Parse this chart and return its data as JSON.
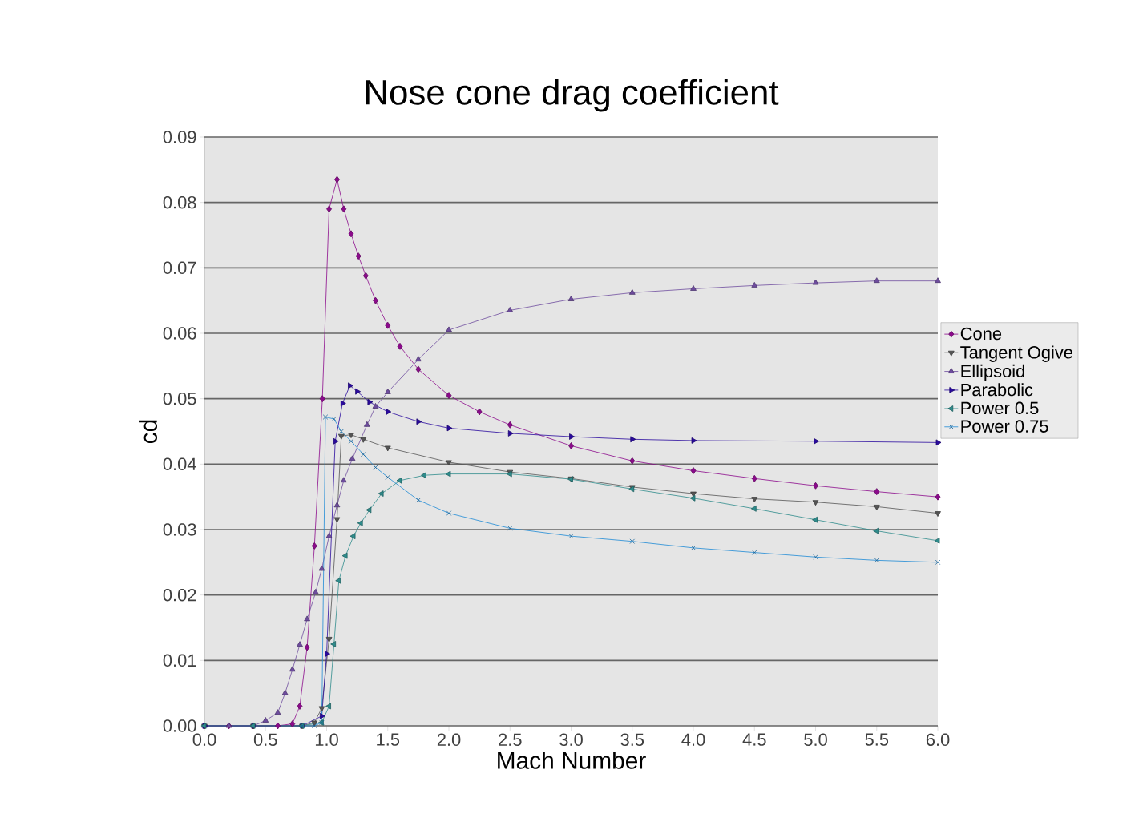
{
  "chart_data": {
    "type": "line",
    "title": "Nose cone drag coefficient",
    "xlabel": "Mach Number",
    "ylabel": "cd",
    "xlim": [
      0,
      6
    ],
    "ylim": [
      0,
      0.09
    ],
    "xticks": [
      {
        "value": 0,
        "label": "0.0"
      },
      {
        "value": 0.5,
        "label": "0.5"
      },
      {
        "value": 1,
        "label": "1.0"
      },
      {
        "value": 1.5,
        "label": "1.5"
      },
      {
        "value": 2,
        "label": "2.0"
      },
      {
        "value": 2.5,
        "label": "2.5"
      },
      {
        "value": 3,
        "label": "3.0"
      },
      {
        "value": 3.5,
        "label": "3.5"
      },
      {
        "value": 4,
        "label": "4.0"
      },
      {
        "value": 4.5,
        "label": "4.5"
      },
      {
        "value": 5,
        "label": "5.0"
      },
      {
        "value": 5.5,
        "label": "5.5"
      },
      {
        "value": 6,
        "label": "6.0"
      }
    ],
    "yticks": [
      {
        "value": 0,
        "label": "0.00"
      },
      {
        "value": 0.01,
        "label": "0.01"
      },
      {
        "value": 0.02,
        "label": "0.02"
      },
      {
        "value": 0.03,
        "label": "0.03"
      },
      {
        "value": 0.04,
        "label": "0.04"
      },
      {
        "value": 0.05,
        "label": "0.05"
      },
      {
        "value": 0.06,
        "label": "0.06"
      },
      {
        "value": 0.07,
        "label": "0.07"
      },
      {
        "value": 0.08,
        "label": "0.08"
      },
      {
        "value": 0.09,
        "label": "0.09"
      }
    ],
    "grid": "y",
    "legend": "right",
    "line_style": "solid",
    "series": [
      {
        "name": "Cone",
        "color": "#8b0a8b",
        "marker": "diamond",
        "x": [
          0,
          0.2,
          0.4,
          0.6,
          0.72,
          0.78,
          0.84,
          0.9,
          0.965,
          1.02,
          1.085,
          1.14,
          1.2,
          1.26,
          1.32,
          1.4,
          1.5,
          1.6,
          1.75,
          2.0,
          2.25,
          2.5,
          3.0,
          3.5,
          4.0,
          4.5,
          5.0,
          5.5,
          6.0
        ],
        "values": [
          0,
          0,
          0,
          0,
          0.0003,
          0.003,
          0.012,
          0.0275,
          0.05,
          0.079,
          0.0835,
          0.079,
          0.0752,
          0.0718,
          0.0688,
          0.065,
          0.0612,
          0.058,
          0.0545,
          0.0505,
          0.048,
          0.046,
          0.0428,
          0.0405,
          0.039,
          0.0378,
          0.0367,
          0.0358,
          0.035
        ]
      },
      {
        "name": "Tangent Ogive",
        "color": "#555555",
        "marker": "triangle",
        "x": [
          0,
          0.4,
          0.8,
          0.9,
          0.96,
          1.02,
          1.085,
          1.12,
          1.2,
          1.3,
          1.5,
          2.0,
          2.5,
          3.0,
          3.5,
          4.0,
          4.5,
          5.0,
          5.5,
          6.0
        ],
        "values": [
          0,
          0,
          0,
          0.0005,
          0.0027,
          0.0133,
          0.0316,
          0.0443,
          0.0445,
          0.0438,
          0.0425,
          0.0403,
          0.0388,
          0.0378,
          0.0365,
          0.0355,
          0.0347,
          0.0342,
          0.0335,
          0.0325
        ]
      },
      {
        "name": "Ellipsoid",
        "color": "#6e4c9e",
        "marker": "triangle",
        "x": [
          0,
          0.2,
          0.4,
          0.5,
          0.6,
          0.66,
          0.72,
          0.78,
          0.84,
          0.91,
          0.96,
          1.02,
          1.085,
          1.14,
          1.21,
          1.33,
          1.4,
          1.5,
          1.75,
          2.0,
          2.5,
          3.0,
          3.5,
          4.0,
          4.5,
          5.0,
          5.5,
          6.0
        ],
        "values": [
          0,
          0,
          0,
          0.0008,
          0.002,
          0.005,
          0.0086,
          0.0124,
          0.0163,
          0.0204,
          0.024,
          0.029,
          0.0337,
          0.0375,
          0.0408,
          0.046,
          0.0488,
          0.051,
          0.056,
          0.0605,
          0.0635,
          0.0652,
          0.0662,
          0.0668,
          0.0673,
          0.0677,
          0.068,
          0.068
        ]
      },
      {
        "name": "Parabolic",
        "color": "#2a0a9e",
        "marker": "triangle",
        "x": [
          0,
          0.4,
          0.8,
          0.96,
          1.0,
          1.07,
          1.13,
          1.19,
          1.25,
          1.35,
          1.5,
          1.75,
          2.0,
          2.5,
          3.0,
          3.5,
          4.0,
          5.0,
          6.0
        ],
        "values": [
          0,
          0,
          0,
          0.0015,
          0.011,
          0.0435,
          0.0493,
          0.052,
          0.0511,
          0.0495,
          0.048,
          0.0465,
          0.0455,
          0.0447,
          0.0442,
          0.0438,
          0.0436,
          0.0435,
          0.0433
        ]
      },
      {
        "name": "Power 0.5",
        "color": "#2e8b8b",
        "marker": "triangle",
        "x": [
          0,
          0.4,
          0.8,
          0.96,
          1.02,
          1.06,
          1.1,
          1.155,
          1.22,
          1.28,
          1.35,
          1.45,
          1.6,
          1.8,
          2.0,
          2.5,
          3.0,
          3.5,
          4.0,
          4.5,
          5.0,
          5.5,
          6.0
        ],
        "values": [
          0,
          0,
          0,
          0.0005,
          0.003,
          0.0125,
          0.0222,
          0.026,
          0.029,
          0.031,
          0.033,
          0.0355,
          0.0375,
          0.0383,
          0.0385,
          0.0385,
          0.0377,
          0.0362,
          0.0348,
          0.0332,
          0.0315,
          0.0298,
          0.0283
        ]
      },
      {
        "name": "Power 0.75",
        "color": "#1e8ad6",
        "marker": "cross",
        "x": [
          0.8,
          0.9,
          0.96,
          0.99,
          1.06,
          1.12,
          1.2,
          1.3,
          1.4,
          1.5,
          1.75,
          2.0,
          2.5,
          3.0,
          3.5,
          4.0,
          4.5,
          5.0,
          5.5,
          6.0
        ],
        "values": [
          0,
          0,
          0.0005,
          0.0472,
          0.0469,
          0.045,
          0.0435,
          0.0415,
          0.0395,
          0.038,
          0.0345,
          0.0325,
          0.0302,
          0.029,
          0.0282,
          0.0272,
          0.0265,
          0.0258,
          0.0253,
          0.025
        ]
      }
    ]
  }
}
